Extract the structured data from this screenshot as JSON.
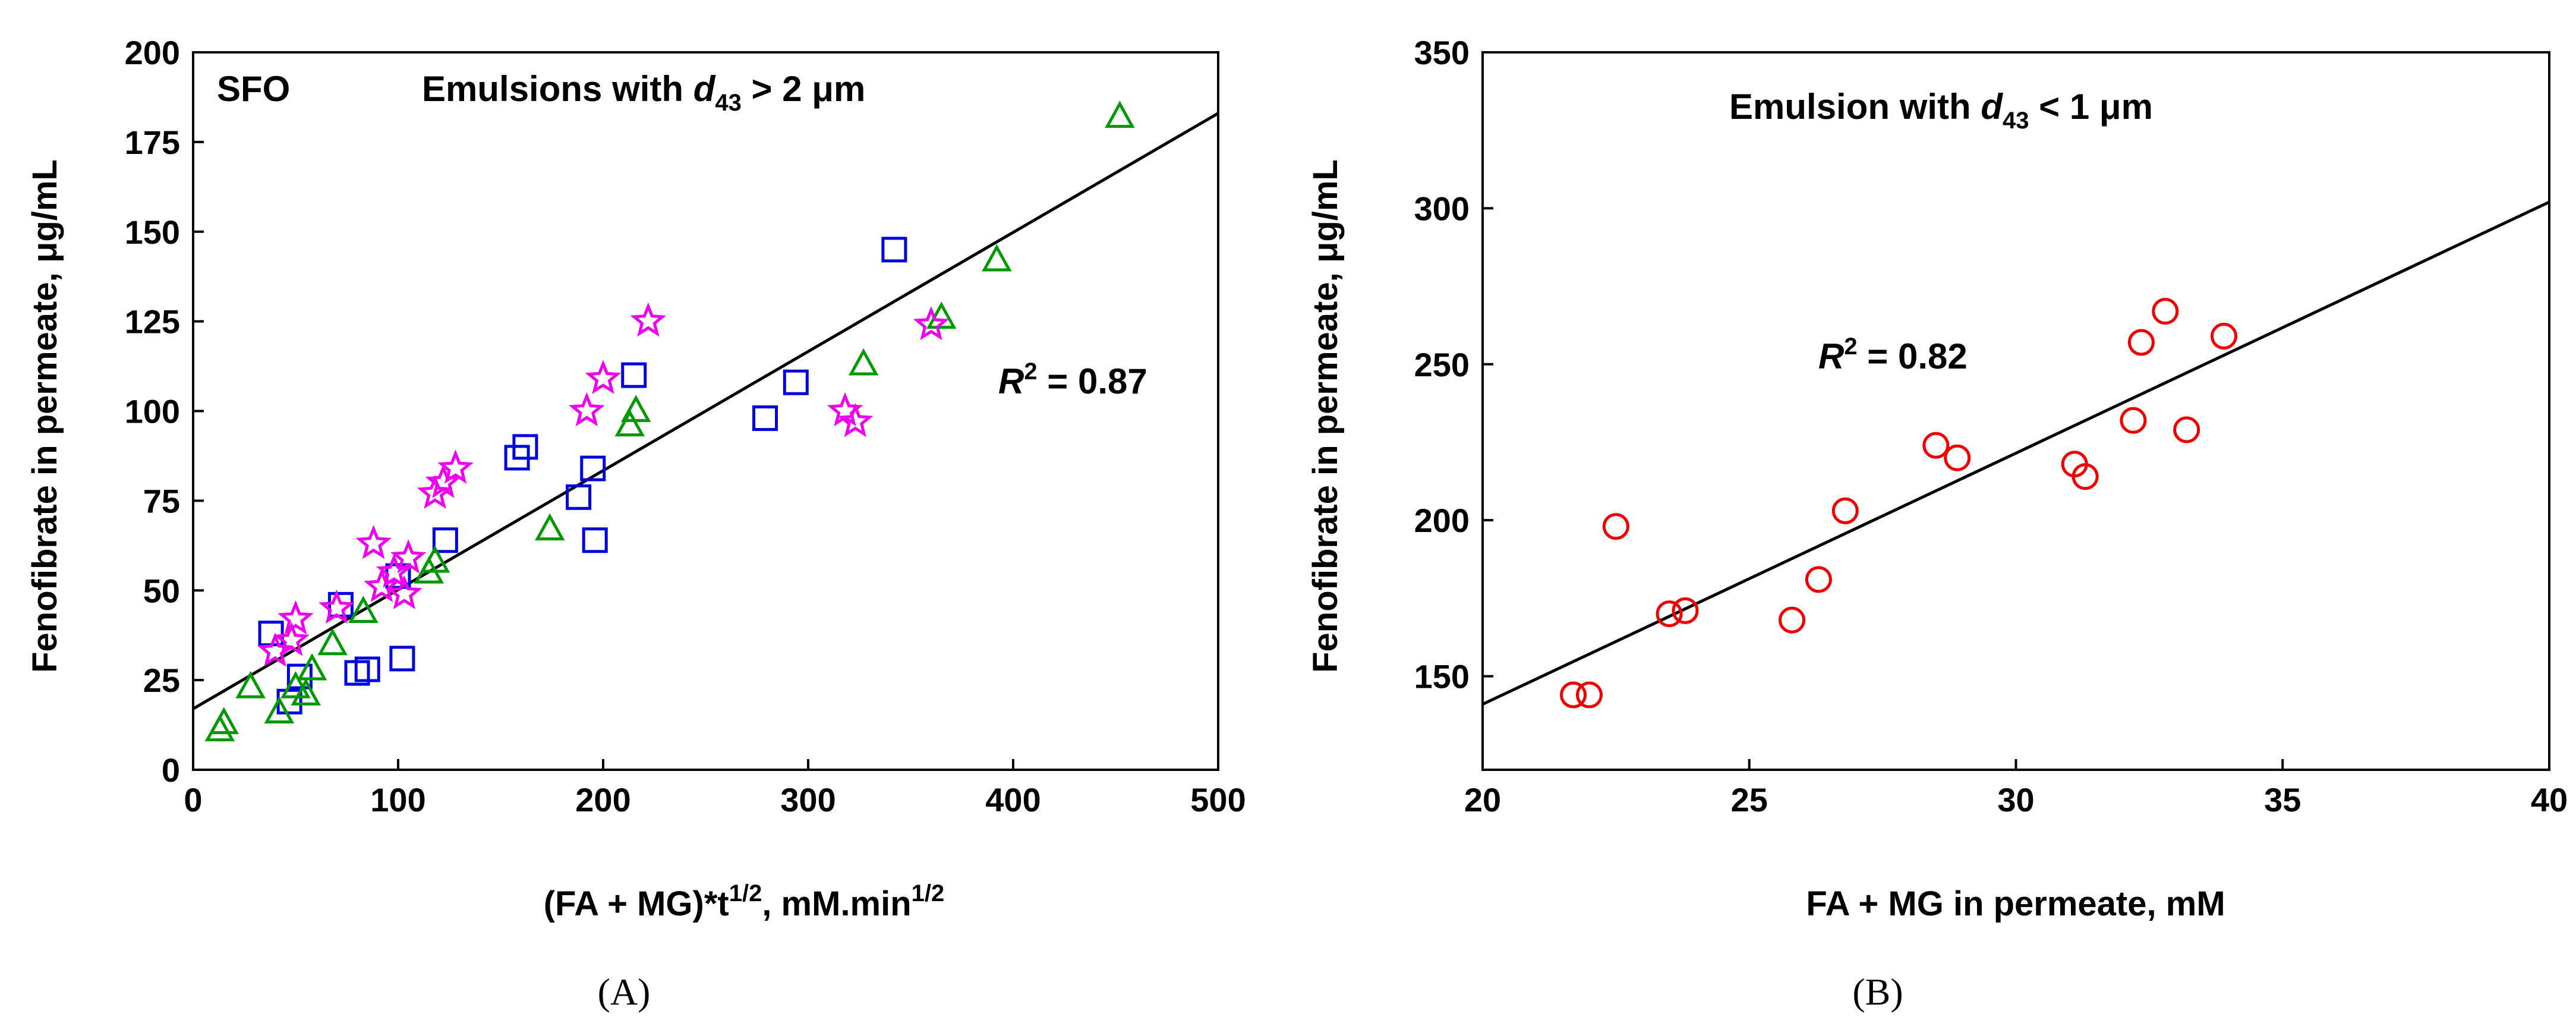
{
  "chart_data": [
    {
      "type": "scatter",
      "panel_label": "(A)",
      "xlabel": "(FA + MG)*t",
      "xlabel_sup": "1/2",
      "xlabel_tail": ", mM.min",
      "xlabel_tail_sup": "1/2",
      "ylabel": "Fenofibrate in permeate, μg/mL",
      "xlim": [
        0,
        500
      ],
      "ylim": [
        0,
        200
      ],
      "xticks": [
        0,
        100,
        200,
        300,
        400,
        500
      ],
      "yticks": [
        0,
        25,
        50,
        75,
        100,
        125,
        150,
        175,
        200
      ],
      "annotations": {
        "oil": "SFO",
        "title_pre": "Emulsions with ",
        "title_var": "d",
        "title_sub": "43",
        "title_post": " > 2 μm",
        "r2_pre": "R",
        "r2_sup": "2",
        "r2_post": " = 0.87"
      },
      "fit_line": {
        "x": [
          0,
          500
        ],
        "y": [
          17,
          183
        ]
      },
      "series": [
        {
          "name": "squares",
          "marker": "square",
          "color": "#0000dd",
          "points": [
            [
              38,
              38
            ],
            [
              47,
              19
            ],
            [
              52,
              26
            ],
            [
              72,
              46
            ],
            [
              80,
              27
            ],
            [
              85,
              28
            ],
            [
              100,
              54
            ],
            [
              102,
              31
            ],
            [
              123,
              64
            ],
            [
              158,
              87
            ],
            [
              162,
              90
            ],
            [
              188,
              76
            ],
            [
              195,
              84
            ],
            [
              196,
              64
            ],
            [
              215,
              110
            ],
            [
              279,
              98
            ],
            [
              294,
              108
            ],
            [
              342,
              145
            ]
          ]
        },
        {
          "name": "triangles",
          "marker": "triangle",
          "color": "#009900",
          "points": [
            [
              13,
              11
            ],
            [
              15,
              13
            ],
            [
              28,
              23
            ],
            [
              42,
              16
            ],
            [
              50,
              23
            ],
            [
              55,
              21
            ],
            [
              58,
              28
            ],
            [
              68,
              35
            ],
            [
              83,
              44
            ],
            [
              115,
              55
            ],
            [
              118,
              58
            ],
            [
              174,
              67
            ],
            [
              213,
              96
            ],
            [
              216,
              100
            ],
            [
              327,
              113
            ],
            [
              365,
              126
            ],
            [
              392,
              142
            ],
            [
              452,
              182
            ]
          ]
        },
        {
          "name": "stars",
          "marker": "star",
          "color": "#ee00ee",
          "points": [
            [
              40,
              33
            ],
            [
              48,
              36
            ],
            [
              50,
              42
            ],
            [
              70,
              45
            ],
            [
              88,
              63
            ],
            [
              92,
              51
            ],
            [
              98,
              55
            ],
            [
              103,
              49
            ],
            [
              105,
              59
            ],
            [
              118,
              77
            ],
            [
              122,
              80
            ],
            [
              128,
              84
            ],
            [
              192,
              100
            ],
            [
              200,
              109
            ],
            [
              222,
              125
            ],
            [
              318,
              100
            ],
            [
              323,
              97
            ],
            [
              360,
              124
            ]
          ]
        }
      ]
    },
    {
      "type": "scatter",
      "panel_label": "(B)",
      "xlabel": "FA + MG in permeate, mM",
      "ylabel": "Fenofibrate in permeate, μg/mL",
      "xlim": [
        20,
        40
      ],
      "ylim": [
        120,
        350
      ],
      "xticks": [
        20,
        25,
        30,
        35,
        40
      ],
      "yticks": [
        150,
        200,
        250,
        300,
        350
      ],
      "annotations": {
        "title_pre": "Emulsion with ",
        "title_var": "d",
        "title_sub": "43",
        "title_post": " < 1 μm",
        "r2_pre": "R",
        "r2_sup": "2",
        "r2_post": " = 0.82"
      },
      "fit_line": {
        "x": [
          20,
          40
        ],
        "y": [
          141,
          302
        ]
      },
      "series": [
        {
          "name": "circles",
          "marker": "circle",
          "color": "#ee0000",
          "points": [
            [
              21.7,
              144
            ],
            [
              22.0,
              144
            ],
            [
              22.5,
              198
            ],
            [
              23.5,
              170
            ],
            [
              23.8,
              171
            ],
            [
              25.8,
              168
            ],
            [
              26.3,
              181
            ],
            [
              26.8,
              203
            ],
            [
              28.5,
              224
            ],
            [
              28.9,
              220
            ],
            [
              31.1,
              218
            ],
            [
              31.3,
              214
            ],
            [
              32.2,
              232
            ],
            [
              32.35,
              257
            ],
            [
              32.8,
              267
            ],
            [
              33.2,
              229
            ],
            [
              33.9,
              259
            ]
          ]
        }
      ]
    }
  ]
}
